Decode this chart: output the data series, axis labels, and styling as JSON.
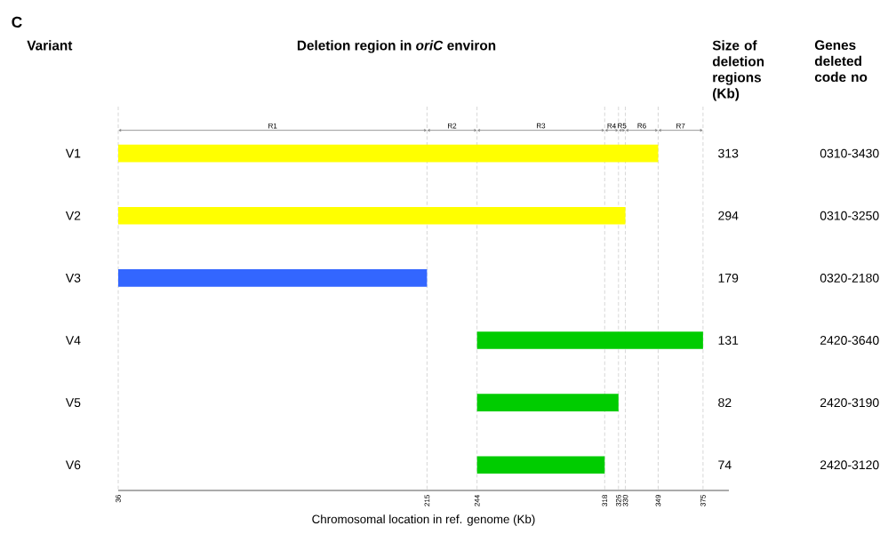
{
  "chart_data": {
    "type": "bar",
    "orientation": "horizontal",
    "title": "Deletion region in *oriC* environ",
    "ylabel": "Variant",
    "xlabel": "Chromosomal location in ref. genome (Kb)",
    "categories": [
      "V1",
      "V2",
      "V3",
      "V4",
      "V5",
      "V6"
    ],
    "base": [
      36,
      36,
      36,
      244,
      244,
      244
    ],
    "values": [
      313,
      294,
      179,
      131,
      82,
      74
    ],
    "colors": [
      "#ffff00",
      "#ffff00",
      "#3366ff",
      "#00cc00",
      "#00cc00",
      "#00cc00"
    ],
    "xlim": [
      36,
      390
    ],
    "xticks": [
      36,
      215,
      244,
      318,
      326,
      330,
      349,
      375
    ],
    "grid": "x",
    "annotations": [
      "C",
      "Size of deletion regions (Kb)",
      "Genes deleted code no",
      "R1",
      "R2",
      "R3",
      "R4",
      "R5",
      "R6",
      "R7",
      "313",
      "294",
      "179",
      "131",
      "82",
      "74",
      "0310-3430",
      "0310-3250",
      "0320-2180",
      "2420-3640",
      "2420-3190",
      "2420-3120"
    ]
  }
}
